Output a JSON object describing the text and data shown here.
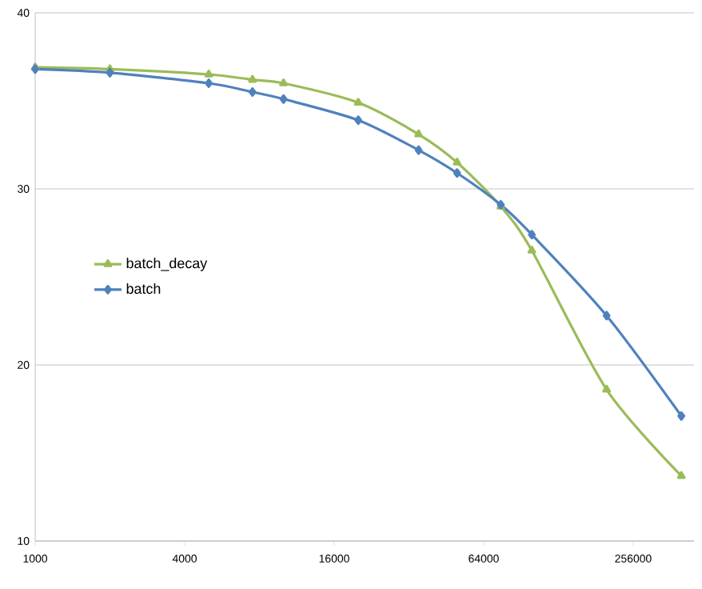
{
  "chart_data": {
    "type": "line",
    "log": "x",
    "grid": "y",
    "legend": "left",
    "x": [
      1000,
      2000,
      5000,
      7500,
      10000,
      20000,
      35000,
      50000,
      75000,
      100000,
      200000,
      400000
    ],
    "xlim": [
      1000,
      450000
    ],
    "xticks": [
      1000,
      4000,
      16000,
      64000,
      256000
    ],
    "ylim": [
      10,
      40
    ],
    "yticks": [
      10,
      20,
      30,
      40
    ],
    "series": [
      {
        "name": "batch_decay",
        "color": "#9bbb59",
        "marker": "triangle",
        "values": [
          36.9,
          36.8,
          36.5,
          36.2,
          36.0,
          34.9,
          33.1,
          31.5,
          29.0,
          26.5,
          18.6,
          13.7
        ]
      },
      {
        "name": "batch",
        "color": "#4f81bd",
        "marker": "diamond",
        "values": [
          36.8,
          36.6,
          36.0,
          35.5,
          35.1,
          33.9,
          32.2,
          30.9,
          29.1,
          27.4,
          22.8,
          17.1
        ]
      }
    ]
  }
}
